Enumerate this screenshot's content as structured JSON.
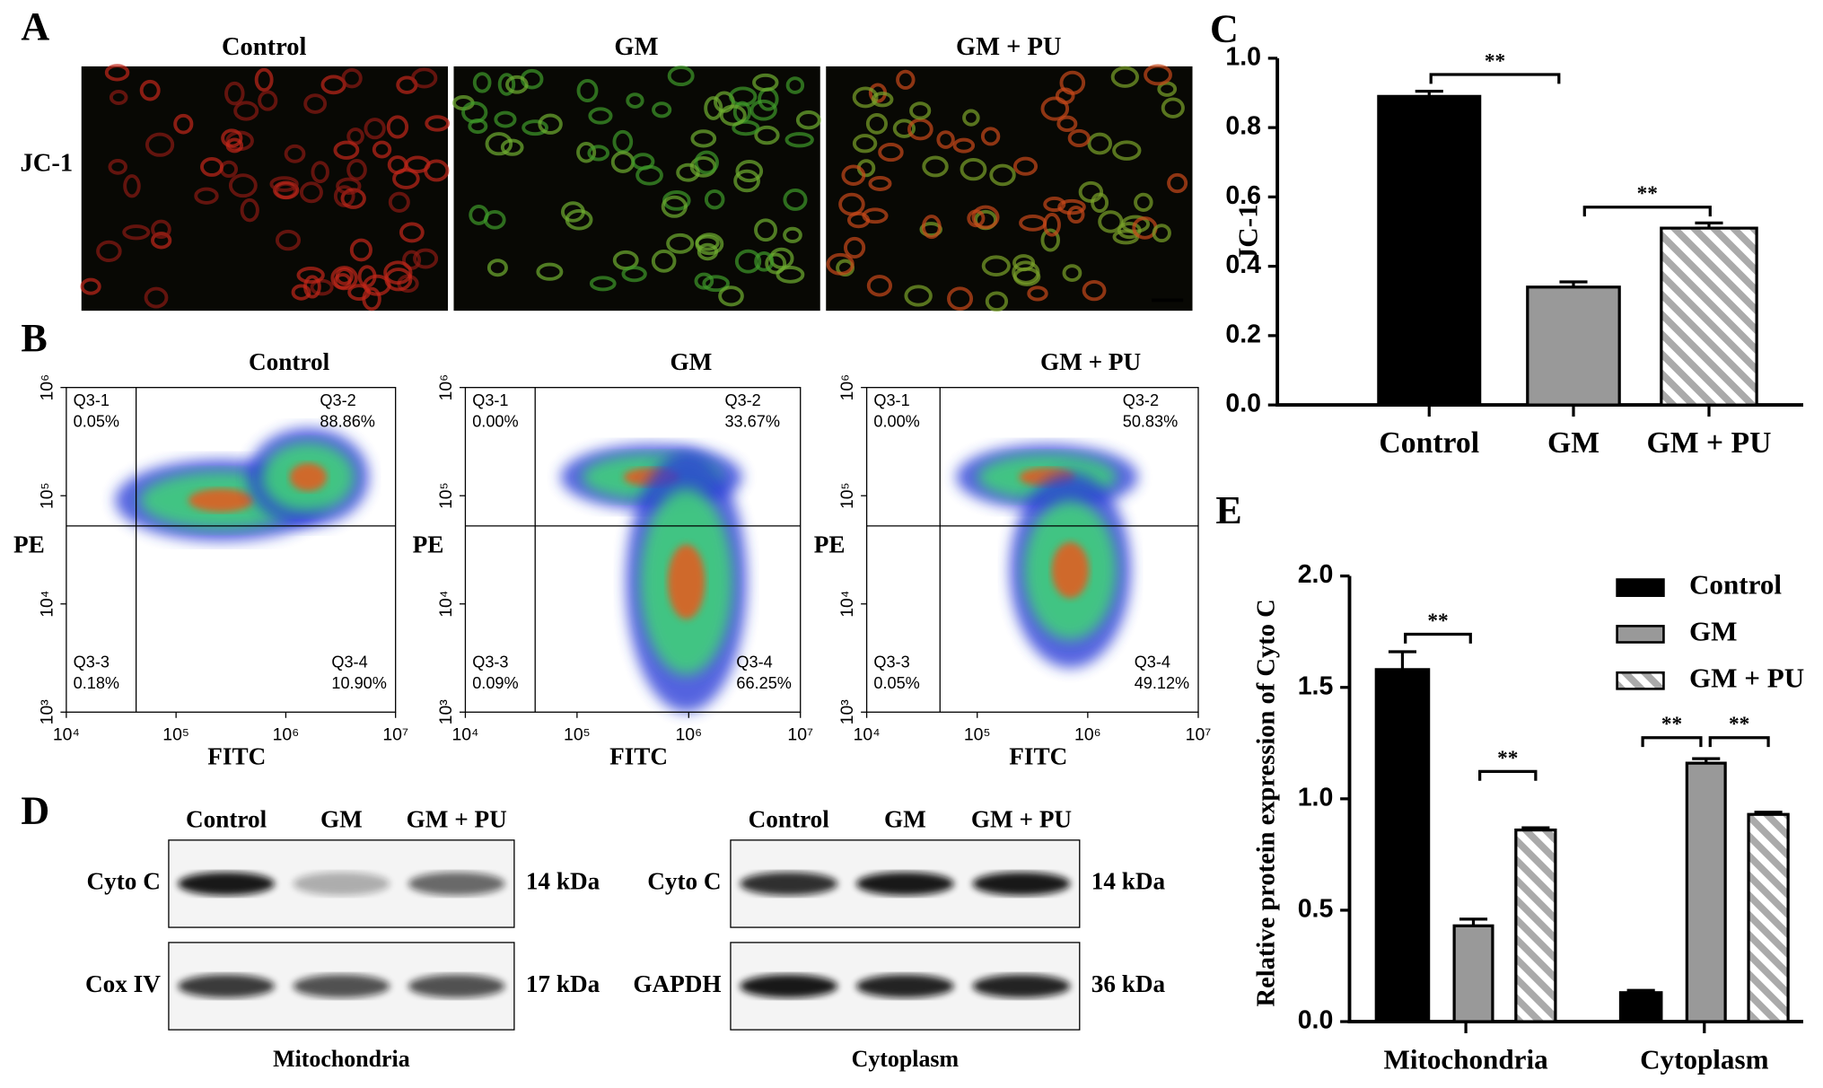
{
  "panels": {
    "letters": [
      "A",
      "B",
      "C",
      "D",
      "E"
    ]
  },
  "microscopy": {
    "titles": [
      "Control",
      "GM",
      "GM + PU"
    ],
    "row_label": "JC-1"
  },
  "flow_cytometry": {
    "titles": [
      "Control",
      "GM",
      "GM + PU"
    ],
    "x_label": "FITC",
    "y_label": "PE",
    "xticks": [
      {
        "value": 4,
        "label": "10⁴"
      },
      {
        "value": 5,
        "label": "10⁵"
      },
      {
        "value": 6,
        "label": "10⁶"
      },
      {
        "value": 7,
        "label": "10⁷"
      }
    ],
    "yticks": [
      {
        "value": 3,
        "label": "10³"
      },
      {
        "value": 4,
        "label": "10⁴"
      },
      {
        "value": 5,
        "label": "10⁵"
      },
      {
        "value": 6,
        "label": "10⁶"
      }
    ],
    "quadrants": [
      [
        [
          "Q3-1",
          "0.05%"
        ],
        [
          "Q3-2",
          "88.86%"
        ],
        [
          "Q3-3",
          "0.18%"
        ],
        [
          "Q3-4",
          "10.90%"
        ]
      ],
      [
        [
          "Q3-1",
          "0.00%"
        ],
        [
          "Q3-2",
          "33.67%"
        ],
        [
          "Q3-3",
          "0.09%"
        ],
        [
          "Q3-4",
          "66.25%"
        ]
      ],
      [
        [
          "Q3-1",
          "0.00%"
        ],
        [
          "Q3-2",
          "50.83%"
        ],
        [
          "Q3-3",
          "0.05%"
        ],
        [
          "Q3-4",
          "49.12%"
        ]
      ]
    ]
  },
  "western_blot": {
    "lanes": [
      "Control",
      "GM",
      "GM + PU"
    ],
    "mitochondria": {
      "title": "Mitochondria",
      "rows": [
        [
          "Cyto C",
          "14 kDa"
        ],
        [
          "Cox IV",
          "17 kDa"
        ]
      ]
    },
    "cytoplasm": {
      "title": "Cytoplasm",
      "rows": [
        [
          "Cyto C",
          "14 kDa"
        ],
        [
          "GAPDH",
          "36 kDa"
        ]
      ]
    }
  },
  "chart_data": [
    {
      "type": "bar",
      "y_label": "JC-1",
      "categories": [
        "Control",
        "GM",
        "GM + PU"
      ],
      "values": [
        0.89,
        0.34,
        0.51
      ],
      "errors": [
        0.015,
        0.015,
        0.015
      ],
      "colors": [
        "#000000",
        "#999999",
        "hatch"
      ],
      "ylim": [
        0,
        1.0
      ],
      "yticks": [
        {
          "value": 0,
          "label": "0.0"
        },
        0.2,
        0.4,
        0.6,
        0.8,
        {
          "value": 1.0,
          "label": "1.0"
        }
      ],
      "significance": [
        "**",
        "**"
      ]
    },
    {
      "type": "grouped_bar",
      "y_label": "Relative protein expression of Cyto C",
      "categories": [
        "Mitochondria",
        "Cytoplasm"
      ],
      "series": [
        {
          "name": "Control",
          "color": "#000000",
          "values": [
            1.58,
            0.13
          ],
          "errors": [
            0.08,
            0.01
          ]
        },
        {
          "name": "GM",
          "color": "#999999",
          "values": [
            0.43,
            1.16
          ],
          "errors": [
            0.03,
            0.02
          ]
        },
        {
          "name": "GM + PU",
          "color": "hatch",
          "values": [
            0.86,
            0.93
          ],
          "errors": [
            0.01,
            0.01
          ]
        }
      ],
      "ylim": [
        0,
        2.0
      ],
      "yticks": [
        {
          "value": 0,
          "label": "0.0"
        },
        0.5,
        {
          "value": 1.0,
          "label": "1.0"
        },
        1.5,
        {
          "value": 2.0,
          "label": "2.0"
        }
      ],
      "legend": "upper right",
      "significance": [
        "**",
        "**",
        "**",
        "**"
      ]
    }
  ]
}
